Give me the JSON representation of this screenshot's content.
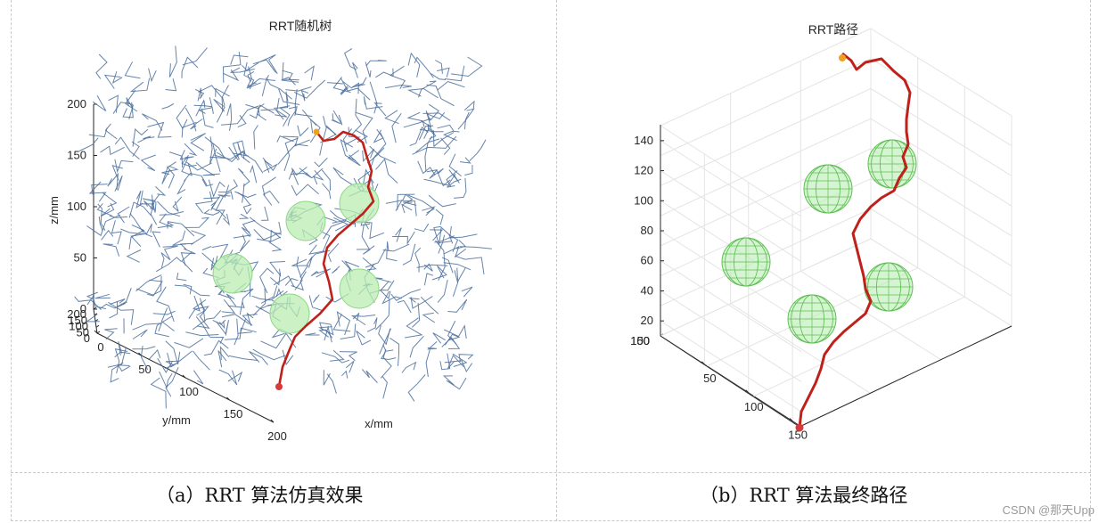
{
  "colors": {
    "tree": "#4a6f9c",
    "path": "#c0201a",
    "obstacle_fill": "#b9ecb2",
    "obstacle_wire": "#5fbf55",
    "start": "#d83a3a",
    "goal": "#f0a020",
    "grid": "#e4e4e4",
    "axis": "#262626"
  },
  "captions": {
    "a": "（a）RRT 算法仿真效果",
    "b": "（b）RRT 算法最终路径"
  },
  "watermark": "CSDN @那天Upp",
  "chart_data": [
    {
      "type": "scatter",
      "title": "RRT随机树",
      "xlabel": "x/mm",
      "ylabel": "y/mm",
      "zlabel": "z/mm",
      "xlim": [
        0,
        200
      ],
      "ylim": [
        0,
        200
      ],
      "zlim": [
        0,
        200
      ],
      "xticks": [
        "0",
        "50",
        "100",
        "150",
        "200"
      ],
      "yticks": [
        "0",
        "50",
        "100",
        "150",
        "200"
      ],
      "zticks": [
        "0",
        "50",
        "100",
        "150",
        "200"
      ],
      "grid": false,
      "series": [
        {
          "kind": "path",
          "points": [
            [
              8,
              8,
              28
            ],
            [
              20,
              18,
              48
            ],
            [
              32,
              26,
              62
            ],
            [
              46,
              32,
              78
            ],
            [
              60,
              36,
              88
            ],
            [
              72,
              42,
              96
            ],
            [
              84,
              52,
              108
            ],
            [
              96,
              62,
              120
            ],
            [
              104,
              72,
              128
            ],
            [
              112,
              84,
              140
            ],
            [
              120,
              96,
              150
            ],
            [
              132,
              110,
              170
            ],
            [
              138,
              124,
              186
            ],
            [
              134,
              136,
              196
            ],
            [
              124,
              146,
              199
            ],
            [
              116,
              152,
              203
            ],
            [
              110,
              160,
              210
            ]
          ]
        },
        {
          "kind": "obstacles",
          "spheres": [
            [
              55,
              40,
              30
            ],
            [
              55,
              150,
              50
            ],
            [
              120,
              80,
              60
            ],
            [
              75,
              155,
              95
            ],
            [
              150,
              110,
              115
            ]
          ]
        }
      ]
    },
    {
      "type": "line",
      "title": "RRT路径",
      "xlabel": "",
      "ylabel": "",
      "zlabel": "",
      "xlim": [
        0,
        160
      ],
      "ylim": [
        0,
        160
      ],
      "zlim": [
        10,
        150
      ],
      "xticks": [
        "50",
        "100",
        "150"
      ],
      "yticks": [
        "50",
        "100",
        "150"
      ],
      "zticks": [
        "20",
        "40",
        "60",
        "80",
        "100",
        "120",
        "140"
      ],
      "grid": true,
      "series": [
        {
          "kind": "path",
          "points": [
            [
              20,
              20,
              12
            ],
            [
              22,
              26,
              20
            ],
            [
              28,
              32,
              30
            ],
            [
              36,
              38,
              40
            ],
            [
              48,
              42,
              48
            ],
            [
              62,
              46,
              54
            ],
            [
              72,
              54,
              62
            ],
            [
              80,
              60,
              70
            ],
            [
              86,
              66,
              82
            ],
            [
              90,
              74,
              94
            ],
            [
              96,
              82,
              104
            ],
            [
              104,
              90,
              114
            ],
            [
              112,
              98,
              124
            ],
            [
              118,
              104,
              134
            ],
            [
              124,
              112,
              142
            ],
            [
              126,
              120,
              150
            ],
            [
              122,
              128,
              160
            ],
            [
              116,
              136,
              166
            ],
            [
              108,
              142,
              170
            ],
            [
              100,
              150,
              176
            ],
            [
              96,
              156,
              178
            ],
            [
              94,
              162,
              184
            ]
          ]
        },
        {
          "kind": "obstacles",
          "spheres": [
            [
              40,
              60,
              30
            ],
            [
              110,
              60,
              40
            ],
            [
              120,
              130,
              105
            ],
            [
              60,
              125,
              110
            ],
            [
              20,
              130,
              55
            ]
          ]
        }
      ]
    }
  ]
}
